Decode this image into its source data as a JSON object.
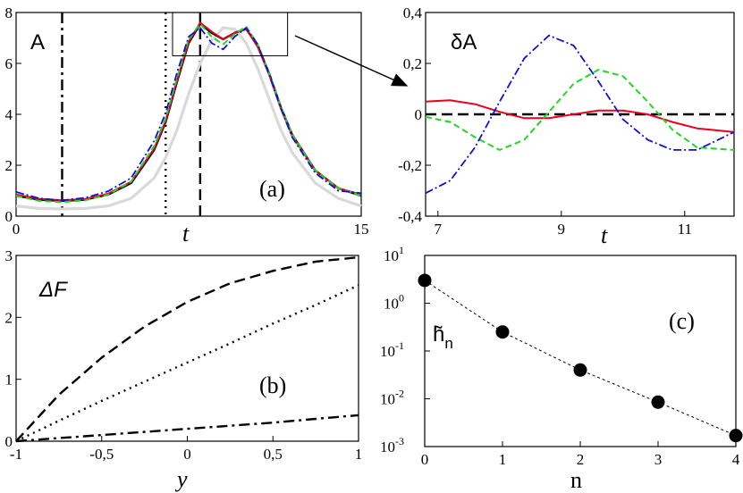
{
  "colors": {
    "black": "#000000",
    "red": "#e8001c",
    "green": "#22d622",
    "blue": "#1010d8",
    "gray": "#d9d9d9"
  },
  "chart_data": [
    {
      "panel": "a",
      "type": "line",
      "tag": "(a)",
      "inner_label": "A",
      "xlabel": "t",
      "ylabel": "",
      "xlim": [
        0,
        15
      ],
      "ylim": [
        0,
        8
      ],
      "x_ticks": [
        0,
        15
      ],
      "x_tick_labels": [
        "0",
        "15"
      ],
      "y_ticks": [
        0,
        2,
        4,
        6,
        8
      ],
      "y_tick_labels": [
        "0",
        "2",
        "4",
        "6",
        "8"
      ],
      "vertical_markers": [
        {
          "x": 2.0,
          "style": "dash-dot"
        },
        {
          "x": 6.5,
          "style": "dotted"
        },
        {
          "x": 8.0,
          "style": "dashed"
        }
      ],
      "zoom_box": {
        "x": [
          6.8,
          11.8
        ],
        "y": [
          6.3,
          8.0
        ]
      },
      "series": [
        {
          "style": "gray",
          "x": [
            0,
            1,
            2,
            3,
            4,
            5,
            6,
            6.5,
            7,
            7.5,
            8,
            8.5,
            9,
            9.5,
            10,
            10.5,
            11,
            11.5,
            12,
            13,
            14,
            15
          ],
          "y": [
            0.4,
            0.3,
            0.28,
            0.3,
            0.4,
            0.7,
            1.5,
            2.3,
            3.4,
            4.8,
            6.0,
            6.9,
            7.4,
            7.35,
            6.8,
            5.8,
            4.6,
            3.4,
            2.5,
            1.3,
            0.7,
            0.4
          ]
        },
        {
          "style": "black-solid",
          "x": [
            0,
            1,
            2,
            3,
            4,
            5,
            6,
            6.5,
            7,
            7.5,
            8,
            8.5,
            9,
            9.5,
            10,
            10.5,
            11,
            11.5,
            12,
            13,
            14,
            15
          ],
          "y": [
            0.8,
            0.65,
            0.6,
            0.65,
            0.85,
            1.3,
            2.6,
            3.7,
            5.3,
            6.8,
            7.55,
            7.2,
            6.95,
            7.2,
            7.35,
            6.7,
            5.6,
            4.3,
            3.2,
            1.8,
            1.1,
            0.8
          ]
        },
        {
          "style": "red-solid",
          "x": [
            0,
            1,
            2,
            3,
            4,
            5,
            6,
            6.5,
            7,
            7.5,
            8,
            8.5,
            9,
            9.5,
            10,
            10.5,
            11,
            11.5,
            12,
            13,
            14,
            15
          ],
          "y": [
            0.85,
            0.68,
            0.62,
            0.67,
            0.88,
            1.35,
            2.65,
            3.75,
            5.35,
            6.85,
            7.6,
            7.25,
            6.95,
            7.2,
            7.35,
            6.65,
            5.55,
            4.25,
            3.15,
            1.8,
            1.1,
            0.85
          ]
        },
        {
          "style": "green-dashed",
          "x": [
            0,
            1,
            2,
            3,
            4,
            5,
            6,
            6.5,
            7,
            7.5,
            8,
            8.5,
            9,
            9.5,
            10,
            10.5,
            11,
            11.5,
            12,
            13,
            14,
            15
          ],
          "y": [
            0.8,
            0.6,
            0.55,
            0.62,
            0.85,
            1.35,
            2.75,
            3.85,
            5.45,
            6.95,
            7.55,
            7.05,
            6.75,
            7.15,
            7.45,
            6.75,
            5.6,
            4.3,
            3.2,
            1.8,
            1.1,
            0.8
          ]
        },
        {
          "style": "blue-dashdot",
          "x": [
            0,
            1,
            2,
            3,
            4,
            5,
            6,
            6.5,
            7,
            7.5,
            8,
            8.5,
            9,
            9.5,
            10,
            10.5,
            11,
            11.5,
            12,
            13,
            14,
            15
          ],
          "y": [
            0.95,
            0.7,
            0.62,
            0.72,
            0.98,
            1.5,
            2.95,
            4.05,
            5.65,
            7.05,
            7.4,
            6.8,
            6.55,
            7.05,
            7.4,
            6.75,
            5.55,
            4.25,
            3.1,
            1.7,
            1.0,
            0.9
          ]
        }
      ]
    },
    {
      "panel": "zoom",
      "type": "line",
      "tag": "",
      "inner_label": "δA",
      "xlabel": "t",
      "ylabel": "",
      "xlim": [
        6.8,
        11.8
      ],
      "ylim": [
        -0.4,
        0.4
      ],
      "x_ticks": [
        7,
        9,
        11
      ],
      "x_tick_labels": [
        "7",
        "9",
        "11"
      ],
      "y_ticks": [
        -0.4,
        -0.2,
        0,
        0.2,
        0.4
      ],
      "y_tick_labels": [
        "-0,4",
        "-0,2",
        "0",
        "0,2",
        "0,4"
      ],
      "series": [
        {
          "style": "black-dashed",
          "x": [
            6.8,
            11.8
          ],
          "y": [
            0,
            0
          ]
        },
        {
          "style": "red-solid",
          "x": [
            6.8,
            7.2,
            7.6,
            8.0,
            8.4,
            8.8,
            9.2,
            9.6,
            10.0,
            10.4,
            10.8,
            11.2,
            11.8
          ],
          "y": [
            0.05,
            0.055,
            0.04,
            0.01,
            -0.015,
            -0.015,
            0.0,
            0.015,
            0.015,
            0.0,
            -0.03,
            -0.055,
            -0.07
          ]
        },
        {
          "style": "green-dashed",
          "x": [
            6.8,
            7.2,
            7.6,
            8.0,
            8.4,
            8.8,
            9.2,
            9.6,
            10.0,
            10.4,
            10.8,
            11.2,
            11.8
          ],
          "y": [
            -0.01,
            -0.03,
            -0.09,
            -0.14,
            -0.1,
            0.01,
            0.12,
            0.175,
            0.15,
            0.05,
            -0.06,
            -0.13,
            -0.14
          ]
        },
        {
          "style": "blue-dashdot",
          "x": [
            6.8,
            7.2,
            7.6,
            8.0,
            8.4,
            8.8,
            9.2,
            9.6,
            10.0,
            10.4,
            10.8,
            11.2,
            11.8
          ],
          "y": [
            -0.31,
            -0.26,
            -0.13,
            0.05,
            0.22,
            0.31,
            0.27,
            0.13,
            -0.02,
            -0.1,
            -0.14,
            -0.14,
            -0.07
          ]
        }
      ]
    },
    {
      "panel": "b",
      "type": "line",
      "tag": "(b)",
      "inner_label": "ΔF",
      "xlabel": "y",
      "ylabel": "",
      "xlim": [
        -1,
        1
      ],
      "ylim": [
        0,
        3
      ],
      "x_ticks": [
        -1,
        -0.5,
        0,
        0.5,
        1
      ],
      "x_tick_labels": [
        "-1",
        "-0,5",
        "0",
        "0,5",
        "1"
      ],
      "y_ticks": [
        0,
        1,
        2,
        3
      ],
      "y_tick_labels": [
        "0",
        "1",
        "2",
        "3"
      ],
      "series": [
        {
          "style": "black-dashed",
          "x": [
            -1,
            -0.75,
            -0.5,
            -0.25,
            0,
            0.25,
            0.5,
            0.75,
            1
          ],
          "y": [
            0,
            0.75,
            1.35,
            1.85,
            2.25,
            2.55,
            2.75,
            2.9,
            2.97
          ]
        },
        {
          "style": "black-dotted",
          "x": [
            -1,
            -0.75,
            -0.5,
            -0.25,
            0,
            0.25,
            0.5,
            0.75,
            1
          ],
          "y": [
            0,
            0.33,
            0.65,
            0.96,
            1.27,
            1.58,
            1.9,
            2.2,
            2.52
          ]
        },
        {
          "style": "black-dashdot",
          "x": [
            -1,
            -0.75,
            -0.5,
            -0.25,
            0,
            0.25,
            0.5,
            0.75,
            1
          ],
          "y": [
            0,
            0.05,
            0.1,
            0.15,
            0.2,
            0.25,
            0.3,
            0.36,
            0.42
          ]
        }
      ]
    },
    {
      "panel": "c",
      "type": "scatter",
      "tag": "(c)",
      "inner_label": "h̃",
      "inner_label_sub": "n",
      "xlabel": "n",
      "ylabel": "",
      "xlim": [
        0,
        4
      ],
      "ylim": [
        0.001,
        10
      ],
      "y_scale": "log",
      "x_ticks": [
        0,
        1,
        2,
        3,
        4
      ],
      "x_tick_labels": [
        "0",
        "1",
        "2",
        "3",
        "4"
      ],
      "y_ticks": [
        0.001,
        0.01,
        0.1,
        1,
        10
      ],
      "y_tick_base": "10",
      "y_tick_exponents": [
        "-3",
        "-2",
        "-1",
        "0",
        "1"
      ],
      "x": [
        0,
        1,
        2,
        3,
        4
      ],
      "y": [
        3.0,
        0.25,
        0.04,
        0.0085,
        0.0017
      ],
      "fit_line": "dashed"
    }
  ]
}
